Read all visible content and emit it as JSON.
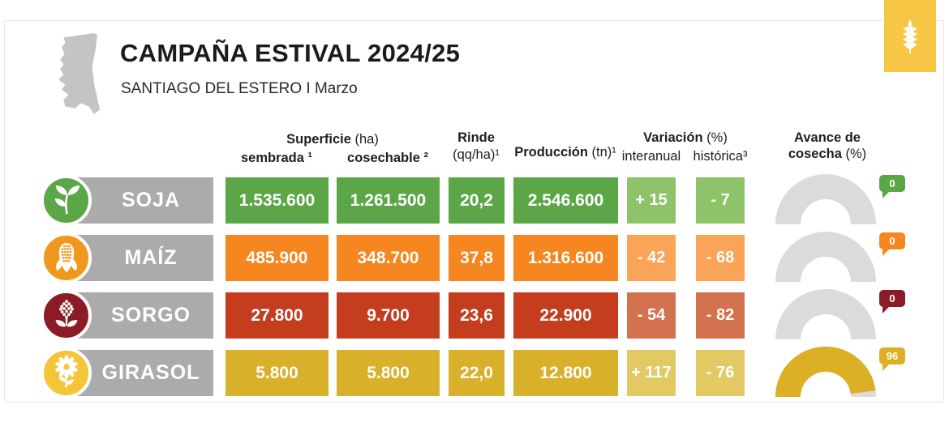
{
  "header": {
    "title": "CAMPAÑA ESTIVAL 2024/25",
    "subtitle": "SANTIAGO DEL ESTERO I Marzo"
  },
  "columns": {
    "superficie": {
      "b": "Superficie",
      "n": "(ha)"
    },
    "sembrada": "sembrada ¹",
    "cosechable": "cosechable ²",
    "rinde": {
      "b": "Rinde",
      "n": "(qq/ha)¹"
    },
    "produccion": {
      "b": "Producción",
      "n": "(tn)¹"
    },
    "variacion": {
      "b": "Variación",
      "n": "(%)"
    },
    "interanual": "interanual",
    "historica": "histórica³",
    "avance": {
      "l1": "Avance de",
      "l2b": "cosecha",
      "l2n": "(%)"
    }
  },
  "theme": {
    "bar": "#ABABAB",
    "track": "#DBDBDB",
    "logo": "#F7C644",
    "map": "#C4C4C4",
    "border": "#E5E5E5",
    "text": "#1F1F1F"
  },
  "rows": [
    {
      "name": "SOJA",
      "icon": "soy-plant-icon",
      "sembrada": "1.535.600",
      "cosechable": "1.261.500",
      "rinde": "20,2",
      "produccion": "2.546.600",
      "interanual": "+ 15",
      "historica": "- 7",
      "avance": "0",
      "gauge_percent": 0,
      "colors": {
        "cell": "#5BA646",
        "light": "#8EC36A",
        "iconbg": "#5BA646",
        "badge": "#5BA646",
        "gaugefill": "#5BA646"
      }
    },
    {
      "name": "MAÍZ",
      "icon": "corn-icon",
      "sembrada": "485.900",
      "cosechable": "348.700",
      "rinde": "37,8",
      "produccion": "1.316.600",
      "interanual": "- 42",
      "historica": "- 68",
      "avance": "0",
      "gauge_percent": 0,
      "colors": {
        "cell": "#F6861F",
        "light": "#F9A457",
        "iconbg": "#F0981D",
        "badge": "#F6861F",
        "gaugefill": "#F6861F"
      }
    },
    {
      "name": "SORGO",
      "icon": "sorghum-icon",
      "sembrada": "27.800",
      "cosechable": "9.700",
      "rinde": "23,6",
      "produccion": "22.900",
      "interanual": "- 54",
      "historica": "- 82",
      "avance": "0",
      "gauge_percent": 0,
      "colors": {
        "cell": "#C33D1E",
        "light": "#D4714E",
        "iconbg": "#8C1B28",
        "badge": "#8C1B28",
        "gaugefill": "#C33D1E"
      }
    },
    {
      "name": "GIRASOL",
      "icon": "sunflower-icon",
      "sembrada": "5.800",
      "cosechable": "5.800",
      "rinde": "22,0",
      "produccion": "12.800",
      "interanual": "+ 117",
      "historica": "- 76",
      "avance": "96",
      "gauge_percent": 96,
      "colors": {
        "cell": "#D9B02A",
        "light": "#E3C964",
        "iconbg": "#F3C537",
        "badge": "#DCAF24",
        "gaugefill": "#DCAF24"
      }
    }
  ],
  "chart_data": {
    "type": "table",
    "title": "CAMPAÑA ESTIVAL 2024/25",
    "subtitle": "SANTIAGO DEL ESTERO I Marzo",
    "columns": [
      "Superficie sembrada (ha)",
      "Superficie cosechable (ha)",
      "Rinde (qq/ha)",
      "Producción (tn)",
      "Variación interanual (%)",
      "Variación histórica (%)",
      "Avance de cosecha (%)"
    ],
    "rows": [
      {
        "crop": "SOJA",
        "sembrada": 1535600,
        "cosechable": 1261500,
        "rinde": 20.2,
        "produccion": 2546600,
        "var_interanual": 15,
        "var_historica": -7,
        "avance_cosecha": 0
      },
      {
        "crop": "MAÍZ",
        "sembrada": 485900,
        "cosechable": 348700,
        "rinde": 37.8,
        "produccion": 1316600,
        "var_interanual": -42,
        "var_historica": -68,
        "avance_cosecha": 0
      },
      {
        "crop": "SORGO",
        "sembrada": 27800,
        "cosechable": 9700,
        "rinde": 23.6,
        "produccion": 22900,
        "var_interanual": -54,
        "var_historica": -82,
        "avance_cosecha": 0
      },
      {
        "crop": "GIRASOL",
        "sembrada": 5800,
        "cosechable": 5800,
        "rinde": 22.0,
        "produccion": 12800,
        "var_interanual": 117,
        "var_historica": -76,
        "avance_cosecha": 96
      }
    ]
  }
}
